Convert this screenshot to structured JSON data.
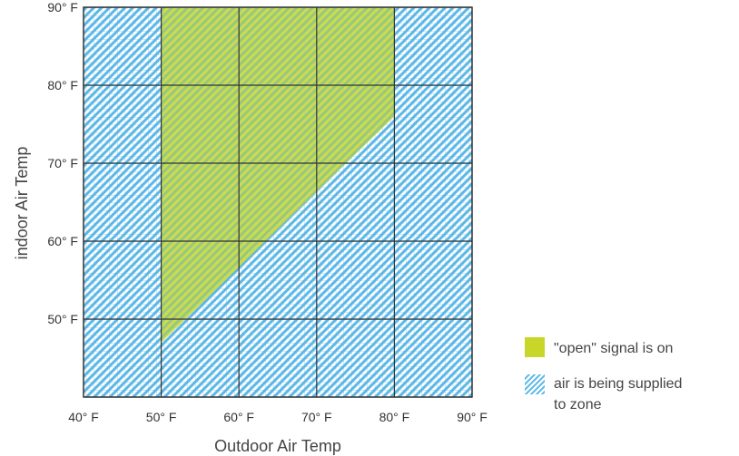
{
  "chart_data": {
    "type": "area",
    "title": "",
    "xlabel": "Outdoor Air Temp",
    "ylabel": "indoor Air Temp",
    "xlim": [
      40,
      90
    ],
    "ylim": [
      40,
      90
    ],
    "x_ticks": [
      40,
      50,
      60,
      70,
      80,
      90
    ],
    "y_ticks": [
      50,
      60,
      70,
      80,
      90
    ],
    "x_tick_labels": [
      "40° F",
      "50° F",
      "60° F",
      "70° F",
      "80° F",
      "90° F"
    ],
    "y_tick_labels": [
      "50° F",
      "60° F",
      "70° F",
      "80° F",
      "90° F"
    ],
    "grid": true,
    "series": [
      {
        "name": "air is being supplied to zone",
        "fill": "hatch",
        "color": "#7ec8ea",
        "polygon": [
          [
            40,
            40
          ],
          [
            90,
            40
          ],
          [
            90,
            90
          ],
          [
            40,
            90
          ]
        ]
      },
      {
        "name": "\"open\" signal is on",
        "fill": "solid",
        "color": "#c8d62a",
        "polygon": [
          [
            50,
            47
          ],
          [
            50,
            90
          ],
          [
            80,
            90
          ],
          [
            80,
            76
          ]
        ]
      }
    ],
    "legend": {
      "position": "bottom-right",
      "items": [
        {
          "label": "\"open\" signal is on",
          "color": "#c8d62a",
          "style": "solid"
        },
        {
          "label_lines": [
            "air is being supplied",
            "to zone"
          ],
          "color": "#7ec8ea",
          "style": "hatch"
        }
      ]
    }
  }
}
